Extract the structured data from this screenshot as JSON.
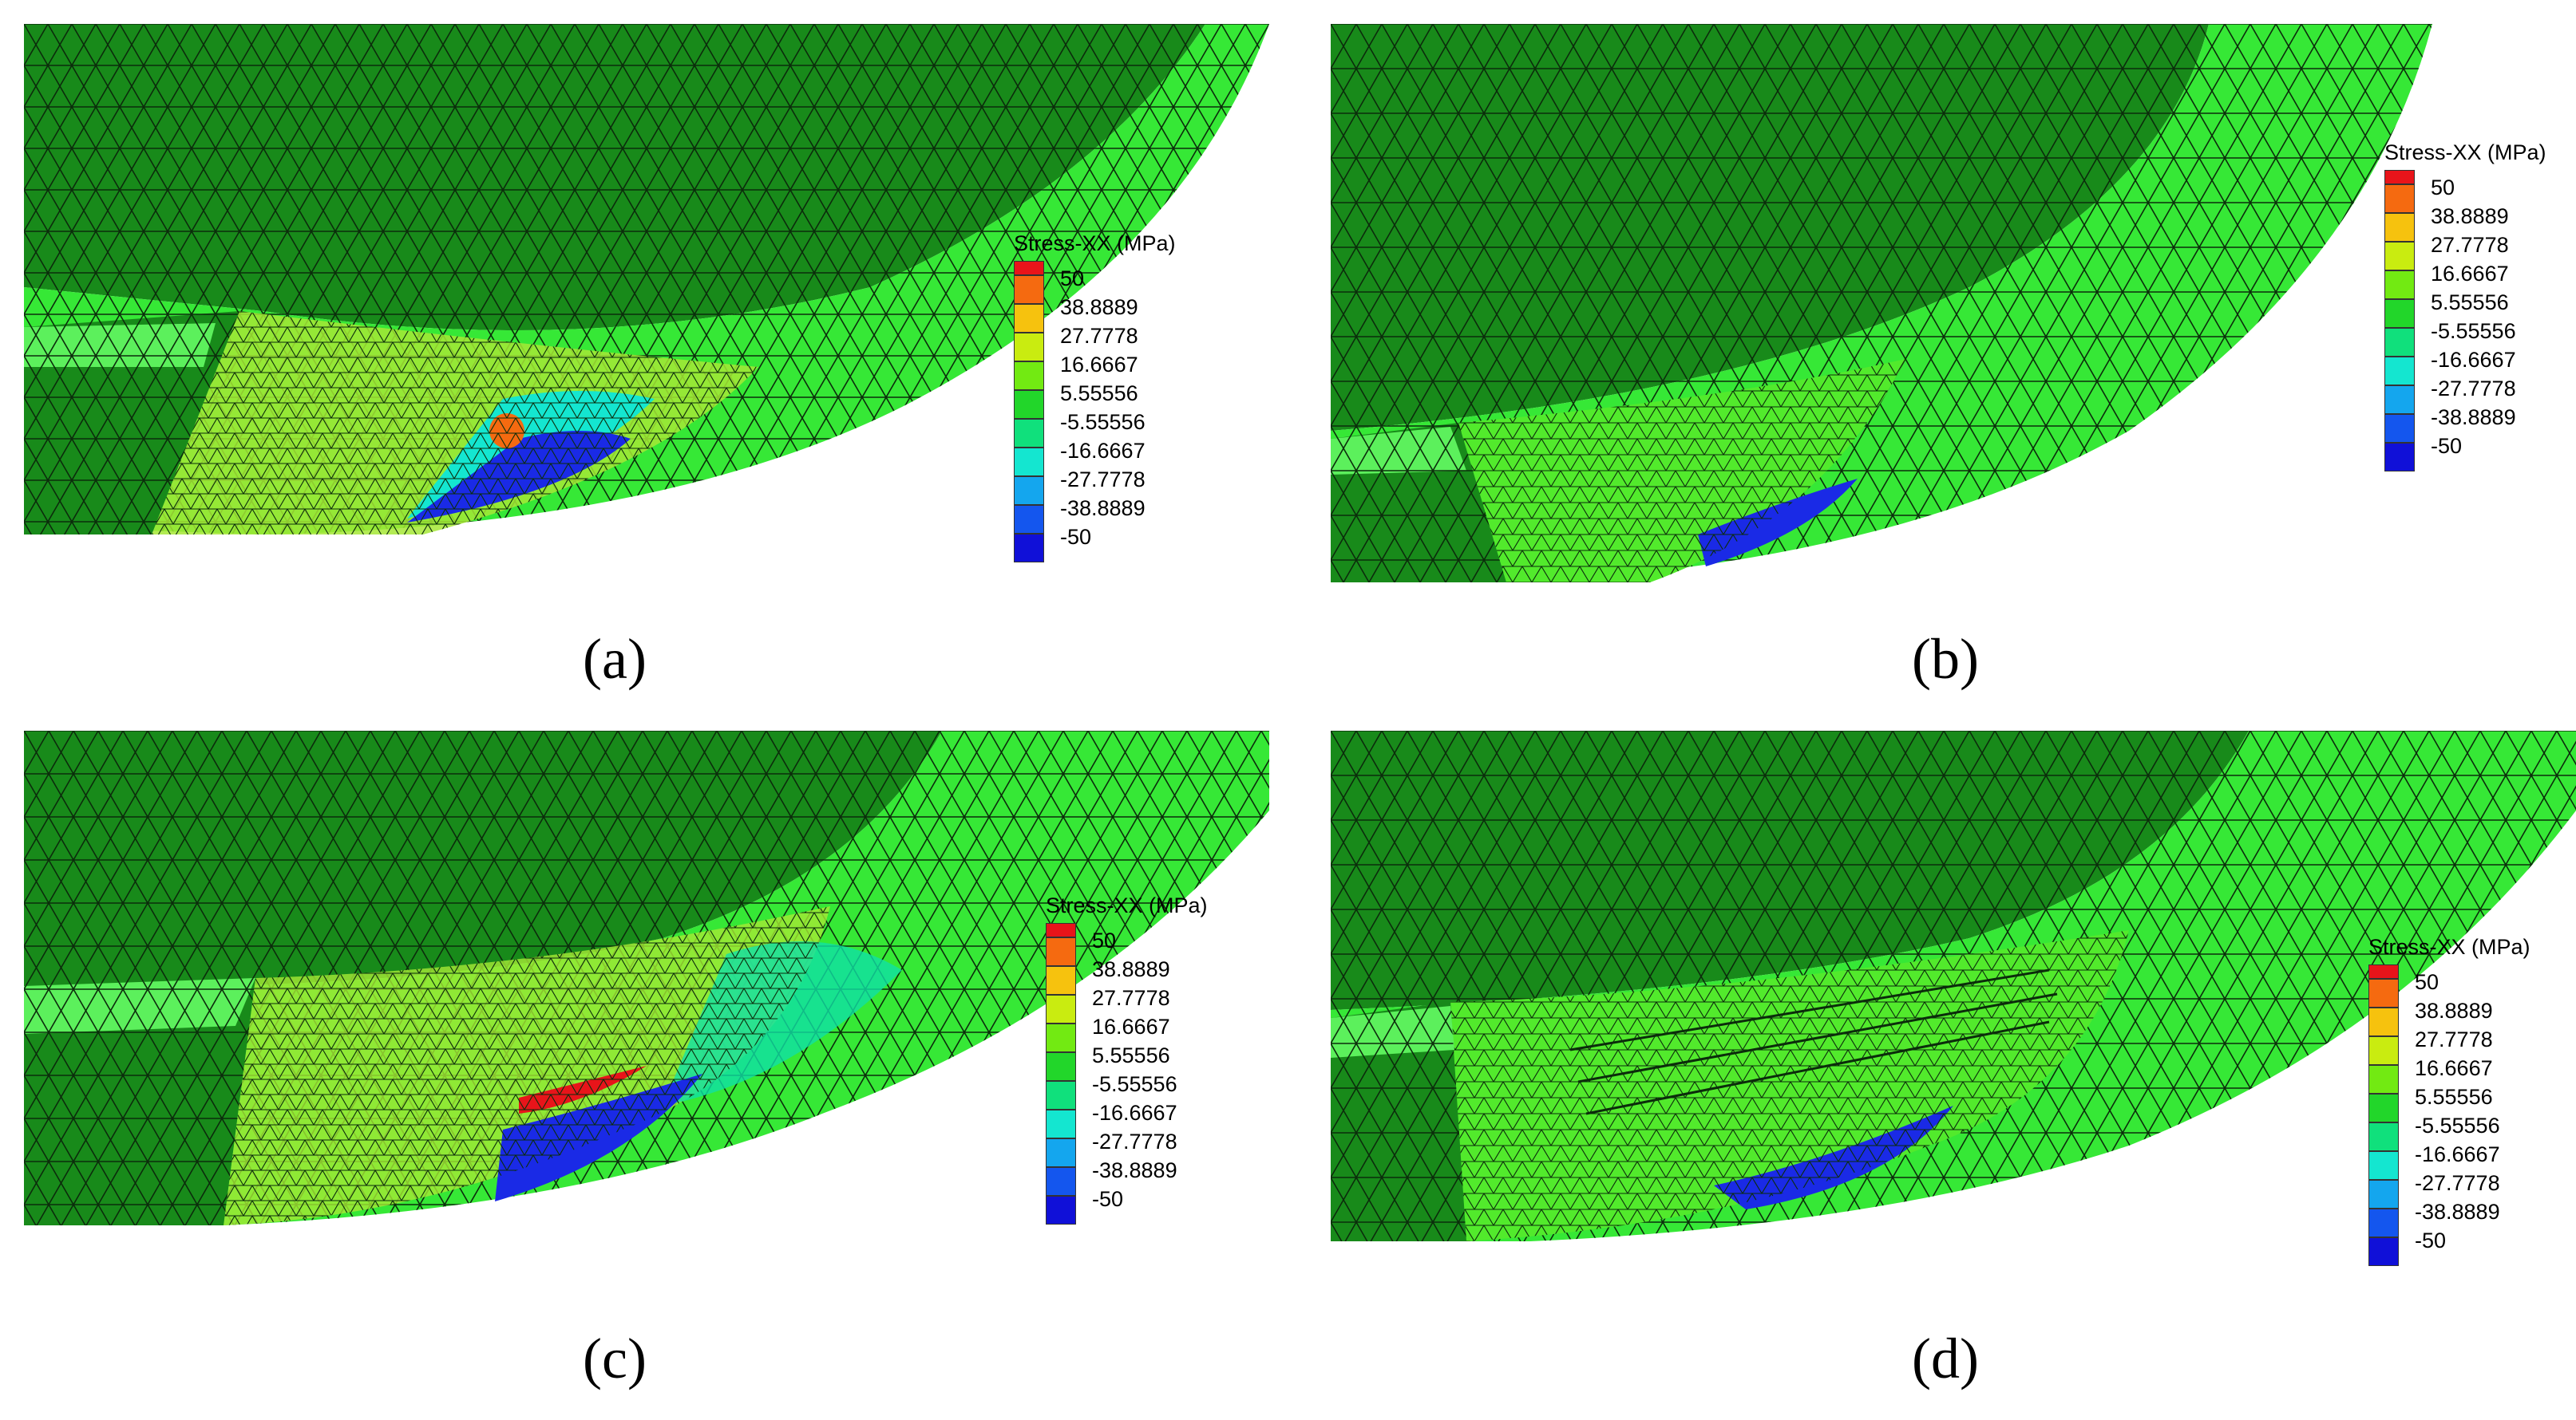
{
  "panels": [
    {
      "id": "a",
      "caption": "(a)"
    },
    {
      "id": "b",
      "caption": "(b)"
    },
    {
      "id": "c",
      "caption": "(c)"
    },
    {
      "id": "d",
      "caption": "(d)"
    }
  ],
  "legend": {
    "title": "Stress-XX (MPa)",
    "labels": [
      "50",
      "38.8889",
      "27.7778",
      "16.6667",
      "5.55556",
      "-5.55556",
      "-16.6667",
      "-27.7778",
      "-38.8889",
      "-50"
    ],
    "colors": [
      "#e8141a",
      "#f56a10",
      "#f6c20e",
      "#c9ec10",
      "#72ea12",
      "#22d62a",
      "#10e07c",
      "#14e6d0",
      "#14a6ee",
      "#1456ee",
      "#1010d8"
    ]
  },
  "mesh_colors": {
    "dark_green": "#188a1a",
    "mid_green": "#20c41f",
    "light_green": "#3cf03c",
    "yellow_green": "#a6e836",
    "blue": "#1a2ae6"
  }
}
